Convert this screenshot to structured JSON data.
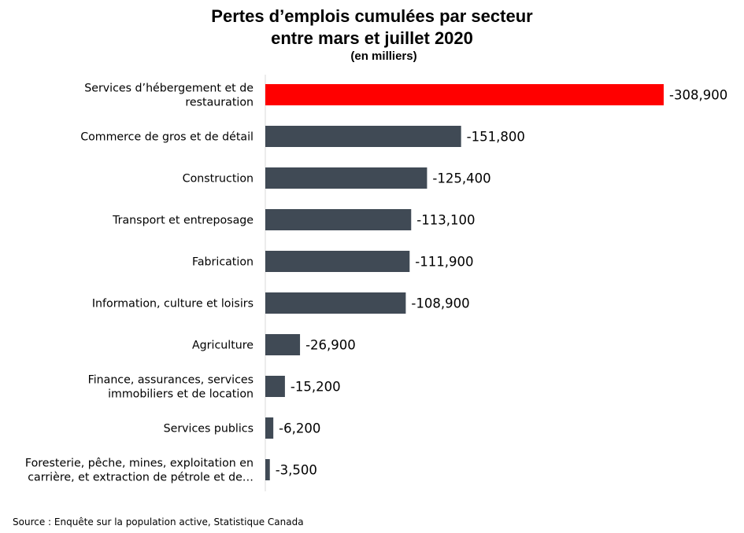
{
  "chart_data": {
    "type": "bar",
    "orientation": "horizontal",
    "title": "Pertes d’emplois cumulées par secteur",
    "title_line2": "entre mars et juillet 2020",
    "subtitle": "(en milliers)",
    "categories": [
      "Services d’hébergement et de restauration",
      "Commerce de gros et de détail",
      "Construction",
      "Transport et entreposage",
      "Fabrication",
      "Information, culture et loisirs",
      "Agriculture",
      "Finance, assurances, services immobiliers et de location",
      "Services publics",
      "Foresterie, pêche, mines, exploitation en carrière, et extraction de pétrole et de…"
    ],
    "category_lines": [
      [
        "Services d’hébergement et de",
        "restauration"
      ],
      [
        "Commerce de gros et de détail"
      ],
      [
        "Construction"
      ],
      [
        "Transport et entreposage"
      ],
      [
        "Fabrication"
      ],
      [
        "Information, culture et loisirs"
      ],
      [
        "Agriculture"
      ],
      [
        "Finance, assurances, services",
        "immobiliers et de location"
      ],
      [
        "Services publics"
      ],
      [
        "Foresterie, pêche, mines, exploitation en",
        "carrière, et extraction de pétrole et de…"
      ]
    ],
    "values": [
      -308900,
      -151800,
      -125400,
      -113100,
      -111900,
      -108900,
      -26900,
      -15200,
      -6200,
      -3500
    ],
    "data_labels": [
      "-308,900",
      "-151,800",
      "-125,400",
      "-113,100",
      "-111,900",
      "-108,900",
      "-26,900",
      "-15,200",
      "-6,200",
      "-3,500"
    ],
    "colors": {
      "highlight": "#FF0000",
      "default": "#404A55"
    },
    "highlight_index": 0,
    "grid": false,
    "legend": "none"
  },
  "source": "Source : Enquête sur la population active, Statistique Canada"
}
